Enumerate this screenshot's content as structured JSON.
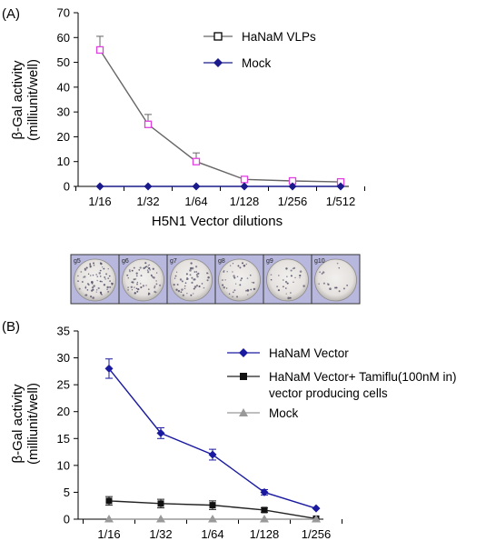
{
  "chart_data": [
    {
      "type": "line",
      "panel_label": "(A)",
      "categories": [
        "1/16",
        "1/32",
        "1/64",
        "1/128",
        "1/256",
        "1/512"
      ],
      "xlabel": "H5N1 Vector dilutions",
      "ylabel": [
        "β-Gal activity",
        "(milliunit/well)"
      ],
      "ylim": [
        0,
        70
      ],
      "yticks": [
        0,
        10,
        20,
        30,
        40,
        50,
        60,
        70
      ],
      "grid": false,
      "legend": "top-right",
      "series": [
        {
          "name": "HaNaM VLPs",
          "values": [
            55,
            25,
            10,
            2.8,
            2.2,
            1.8
          ],
          "errors": [
            5.5,
            4,
            3.5,
            0,
            0,
            0
          ],
          "color": "#666666",
          "marker": "open-square",
          "marker_color": "#e040e0"
        },
        {
          "name": "Mock",
          "values": [
            0,
            0,
            0,
            0,
            0,
            0
          ],
          "errors": [
            0,
            0,
            0,
            0,
            0,
            0
          ],
          "color": "#1a1a8c",
          "marker": "diamond",
          "marker_color": "#1a1a8c"
        }
      ]
    },
    {
      "type": "line",
      "panel_label": "(B)",
      "categories": [
        "1/16",
        "1/32",
        "1/64",
        "1/128",
        "1/256"
      ],
      "xlabel": "",
      "ylabel": [
        "β-Gal activity",
        "(milliunit/well)"
      ],
      "ylim": [
        0,
        35
      ],
      "yticks": [
        0,
        5,
        10,
        15,
        20,
        25,
        30,
        35
      ],
      "grid": false,
      "legend": "top-right",
      "series": [
        {
          "name": "HaNaM Vector",
          "values": [
            28,
            16,
            12,
            5,
            2
          ],
          "errors": [
            1.8,
            1,
            1,
            0.5,
            0
          ],
          "color": "#1a1aa0",
          "marker": "diamond",
          "marker_color": "#1a1aa0"
        },
        {
          "name": "HaNaM Vector+ Tamiflu(100nM in)",
          "name_line2": "vector producing cells",
          "values": [
            3.4,
            2.9,
            2.6,
            1.7,
            0.1
          ],
          "errors": [
            0.8,
            0.8,
            0.8,
            0.4,
            0
          ],
          "color": "#222222",
          "marker": "square",
          "marker_color": "#111111"
        },
        {
          "name": "Mock",
          "values": [
            0,
            0,
            0,
            0,
            0
          ],
          "errors": [
            0,
            0,
            0,
            0,
            0
          ],
          "color": "#999999",
          "marker": "triangle",
          "marker_color": "#999999"
        }
      ]
    }
  ],
  "wells": {
    "labels": [
      "g5",
      "g6",
      "g7",
      "g8",
      "g9",
      "g10"
    ]
  }
}
